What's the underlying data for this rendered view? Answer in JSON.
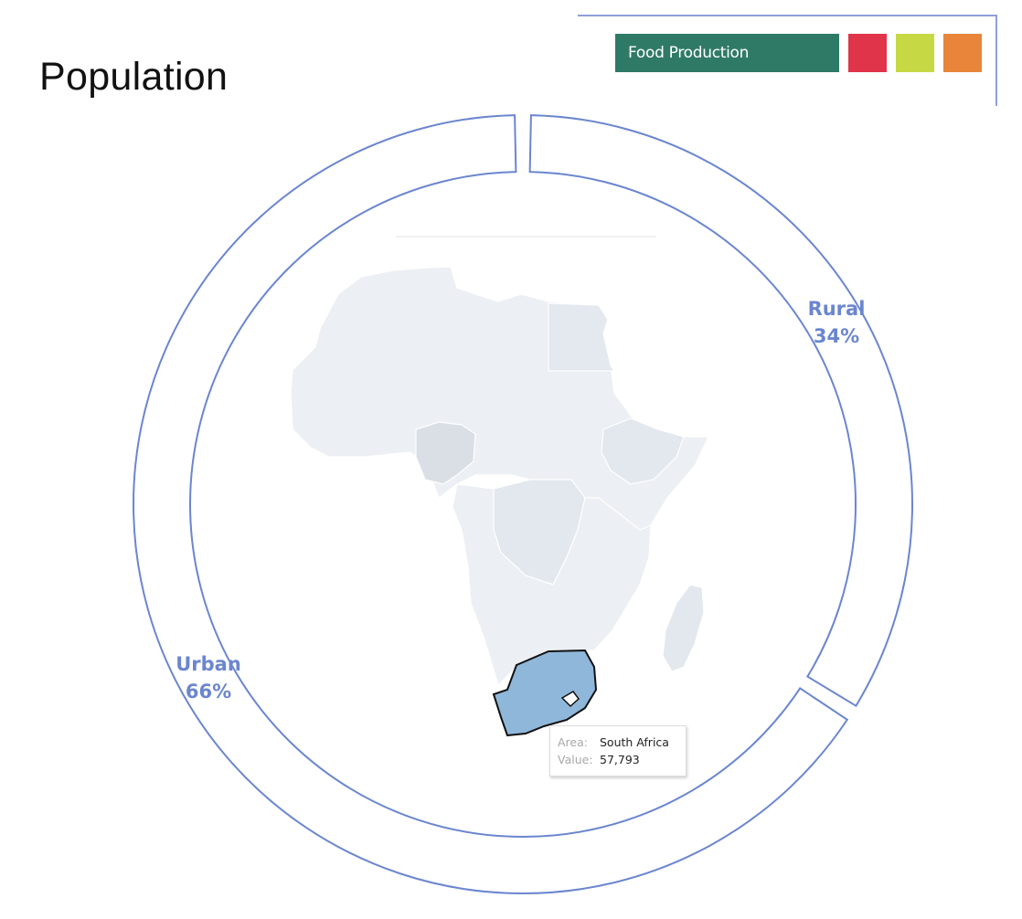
{
  "page": {
    "title": "Population"
  },
  "filters": [
    {
      "label": "Food Production",
      "color": "#2f7a67"
    },
    {
      "label": "",
      "color": "#e0344a"
    },
    {
      "label": "",
      "color": "#c6d944"
    },
    {
      "label": "",
      "color": "#e8853a"
    }
  ],
  "donut": {
    "stroke_color": "#6b86cf",
    "segments": [
      {
        "name": "Rural",
        "label": "Rural",
        "percent_label": "34%",
        "value": 34
      },
      {
        "name": "Urban",
        "label": "Urban",
        "percent_label": "66%",
        "value": 66
      }
    ]
  },
  "map": {
    "region": "Africa",
    "base_fill": "#eceff3",
    "highlight_fill": "#8fb7da",
    "highlighted_country": "South Africa"
  },
  "tooltip": {
    "area_key": "Area:",
    "area_value": "South Africa",
    "value_key": "Value:",
    "value_value": "57,793"
  }
}
